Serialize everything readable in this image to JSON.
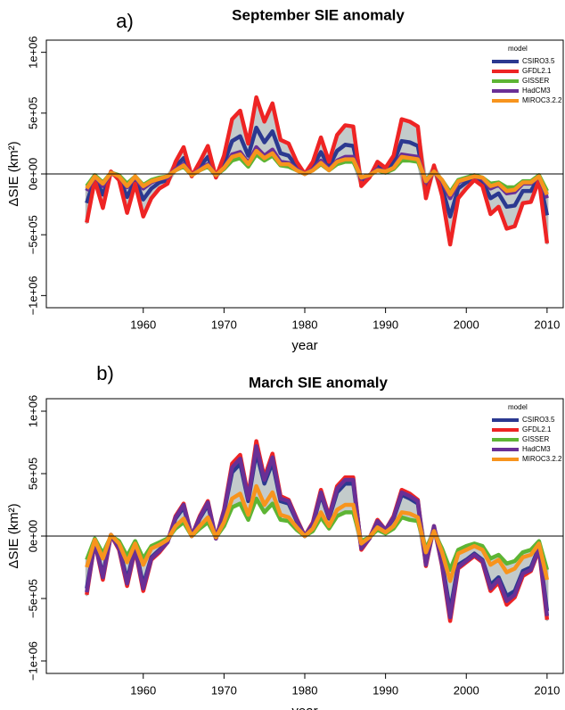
{
  "chart_data": [
    {
      "type": "line",
      "panel_label": "a)",
      "title": "September SIE anomaly",
      "x_label": "year",
      "y_label": "ΔSIE (km²)",
      "legend_title": "model",
      "legend": "top-right",
      "xlim": [
        1948,
        2012
      ],
      "xticks": [
        1960,
        1970,
        1980,
        1990,
        2000,
        2010
      ],
      "ylim": [
        -1100000,
        1100000
      ],
      "yticks": [
        {
          "value": -1000000,
          "label": "−1e+06"
        },
        {
          "value": -500000,
          "label": "−5e+05"
        },
        {
          "value": 0,
          "label": "0e+00"
        },
        {
          "value": 500000,
          "label": "5e+05"
        },
        {
          "value": 1000000,
          "label": "1e+06"
        }
      ],
      "x": [
        1953,
        1954,
        1955,
        1956,
        1957,
        1958,
        1959,
        1960,
        1961,
        1962,
        1963,
        1964,
        1965,
        1966,
        1967,
        1968,
        1969,
        1970,
        1971,
        1972,
        1973,
        1974,
        1975,
        1976,
        1977,
        1978,
        1979,
        1980,
        1981,
        1982,
        1983,
        1984,
        1985,
        1986,
        1987,
        1988,
        1989,
        1990,
        1991,
        1992,
        1993,
        1994,
        1995,
        1996,
        1997,
        1998,
        1999,
        2000,
        2001,
        2002,
        2003,
        2004,
        2005,
        2006,
        2007,
        2008,
        2009,
        2010
      ],
      "series": [
        {
          "name": "CSIRO3.5",
          "color": "#2b3990",
          "values": [
            -240000,
            -30000,
            -170000,
            10000,
            -30000,
            -190000,
            -50000,
            -210000,
            -120000,
            -70000,
            -50000,
            60000,
            130000,
            -10000,
            60000,
            140000,
            -20000,
            90000,
            270000,
            310000,
            150000,
            380000,
            260000,
            350000,
            170000,
            150000,
            60000,
            0,
            60000,
            180000,
            60000,
            190000,
            240000,
            230000,
            -60000,
            -20000,
            60000,
            30000,
            90000,
            270000,
            260000,
            230000,
            -120000,
            40000,
            -110000,
            -350000,
            -120000,
            -70000,
            -30000,
            -60000,
            -200000,
            -160000,
            -270000,
            -260000,
            -140000,
            -140000,
            -30000,
            -340000
          ]
        },
        {
          "name": "GFDL2.1",
          "color": "#ee2424",
          "values": [
            -400000,
            -50000,
            -280000,
            20000,
            -50000,
            -320000,
            -80000,
            -350000,
            -200000,
            -120000,
            -80000,
            100000,
            220000,
            -20000,
            100000,
            230000,
            -30000,
            150000,
            450000,
            520000,
            250000,
            630000,
            430000,
            580000,
            280000,
            250000,
            100000,
            0,
            100000,
            300000,
            100000,
            320000,
            400000,
            390000,
            -100000,
            -30000,
            100000,
            50000,
            150000,
            450000,
            430000,
            390000,
            -200000,
            70000,
            -180000,
            -580000,
            -200000,
            -120000,
            -50000,
            -100000,
            -330000,
            -270000,
            -450000,
            -430000,
            -240000,
            -230000,
            -50000,
            -570000
          ]
        },
        {
          "name": "GISSER",
          "color": "#5db534",
          "values": [
            -100000,
            -10000,
            -70000,
            10000,
            -10000,
            -80000,
            -20000,
            -90000,
            -50000,
            -30000,
            -20000,
            30000,
            60000,
            -10000,
            30000,
            60000,
            -10000,
            40000,
            110000,
            130000,
            60000,
            160000,
            110000,
            150000,
            70000,
            60000,
            30000,
            0,
            30000,
            80000,
            30000,
            80000,
            100000,
            100000,
            -30000,
            -10000,
            30000,
            10000,
            40000,
            110000,
            110000,
            100000,
            -50000,
            20000,
            -50000,
            -150000,
            -50000,
            -30000,
            -10000,
            -30000,
            -80000,
            -70000,
            -110000,
            -110000,
            -60000,
            -60000,
            -10000,
            -140000
          ]
        },
        {
          "name": "HadCM3",
          "color": "#6a2f96",
          "values": [
            -140000,
            -20000,
            -100000,
            10000,
            -20000,
            -110000,
            -30000,
            -120000,
            -70000,
            -40000,
            -30000,
            40000,
            80000,
            -10000,
            40000,
            80000,
            -10000,
            50000,
            160000,
            180000,
            90000,
            220000,
            150000,
            200000,
            100000,
            90000,
            40000,
            0,
            40000,
            110000,
            40000,
            110000,
            140000,
            140000,
            -40000,
            -10000,
            40000,
            20000,
            50000,
            160000,
            150000,
            140000,
            -70000,
            20000,
            -60000,
            -200000,
            -70000,
            -40000,
            -20000,
            -40000,
            -120000,
            -90000,
            -160000,
            -150000,
            -80000,
            -80000,
            -20000,
            -200000
          ]
        },
        {
          "name": "MIROC3.2.2",
          "color": "#f7941d",
          "values": [
            -120000,
            -20000,
            -80000,
            10000,
            -20000,
            -100000,
            -20000,
            -100000,
            -60000,
            -40000,
            -20000,
            30000,
            70000,
            -10000,
            30000,
            70000,
            -10000,
            50000,
            140000,
            160000,
            80000,
            190000,
            130000,
            170000,
            80000,
            80000,
            30000,
            0,
            30000,
            90000,
            30000,
            100000,
            120000,
            120000,
            -30000,
            -10000,
            30000,
            20000,
            50000,
            140000,
            130000,
            120000,
            -60000,
            20000,
            -50000,
            -170000,
            -60000,
            -40000,
            -20000,
            -30000,
            -100000,
            -80000,
            -140000,
            -130000,
            -70000,
            -70000,
            -20000,
            -170000
          ]
        }
      ]
    },
    {
      "type": "line",
      "panel_label": "b)",
      "title": "March SIE anomaly",
      "x_label": "year",
      "y_label": "ΔSIE (km²)",
      "legend_title": "model",
      "legend": "top-right",
      "xlim": [
        1948,
        2012
      ],
      "xticks": [
        1960,
        1970,
        1980,
        1990,
        2000,
        2010
      ],
      "ylim": [
        -1100000,
        1100000
      ],
      "yticks": [
        {
          "value": -1000000,
          "label": "−1e+06"
        },
        {
          "value": -500000,
          "label": "−5e+05"
        },
        {
          "value": 0,
          "label": "0e+00"
        },
        {
          "value": 500000,
          "label": "5e+05"
        },
        {
          "value": 1000000,
          "label": "1e+06"
        }
      ],
      "x": [
        1953,
        1954,
        1955,
        1956,
        1957,
        1958,
        1959,
        1960,
        1961,
        1962,
        1963,
        1964,
        1965,
        1966,
        1967,
        1968,
        1969,
        1970,
        1971,
        1972,
        1973,
        1974,
        1975,
        1976,
        1977,
        1978,
        1979,
        1980,
        1981,
        1982,
        1983,
        1984,
        1985,
        1986,
        1987,
        1988,
        1989,
        1990,
        1991,
        1992,
        1993,
        1994,
        1995,
        1996,
        1997,
        1998,
        1999,
        2000,
        2001,
        2002,
        2003,
        2004,
        2005,
        2006,
        2007,
        2008,
        2009,
        2010
      ],
      "series": [
        {
          "name": "CSIRO3.5",
          "color": "#2b3990",
          "values": [
            -420000,
            -50000,
            -310000,
            10000,
            -90000,
            -350000,
            -90000,
            -390000,
            -170000,
            -110000,
            -50000,
            140000,
            230000,
            0,
            140000,
            250000,
            -20000,
            190000,
            510000,
            580000,
            280000,
            670000,
            420000,
            590000,
            280000,
            260000,
            120000,
            0,
            90000,
            330000,
            140000,
            350000,
            420000,
            420000,
            -90000,
            -20000,
            110000,
            50000,
            140000,
            330000,
            300000,
            260000,
            -210000,
            70000,
            -210000,
            -600000,
            -230000,
            -190000,
            -140000,
            -190000,
            -390000,
            -330000,
            -480000,
            -440000,
            -280000,
            -250000,
            -90000,
            -600000
          ]
        },
        {
          "name": "GFDL2.1",
          "color": "#ee2424",
          "values": [
            -470000,
            -50000,
            -350000,
            10000,
            -110000,
            -400000,
            -110000,
            -440000,
            -190000,
            -130000,
            -50000,
            160000,
            260000,
            0,
            160000,
            280000,
            -20000,
            210000,
            580000,
            650000,
            320000,
            760000,
            470000,
            660000,
            320000,
            290000,
            140000,
            0,
            110000,
            370000,
            160000,
            400000,
            470000,
            470000,
            -110000,
            -20000,
            130000,
            50000,
            160000,
            370000,
            340000,
            290000,
            -240000,
            80000,
            -240000,
            -680000,
            -260000,
            -210000,
            -160000,
            -210000,
            -440000,
            -370000,
            -550000,
            -490000,
            -320000,
            -280000,
            -110000,
            -670000
          ]
        },
        {
          "name": "GISSER",
          "color": "#5db534",
          "values": [
            -190000,
            -20000,
            -140000,
            0,
            -40000,
            -160000,
            -40000,
            -180000,
            -80000,
            -50000,
            -20000,
            60000,
            110000,
            0,
            60000,
            110000,
            -10000,
            80000,
            230000,
            260000,
            130000,
            300000,
            190000,
            260000,
            130000,
            120000,
            50000,
            0,
            40000,
            150000,
            60000,
            160000,
            190000,
            190000,
            -40000,
            -10000,
            50000,
            20000,
            60000,
            150000,
            130000,
            120000,
            -100000,
            30000,
            -100000,
            -270000,
            -110000,
            -80000,
            -60000,
            -80000,
            -180000,
            -150000,
            -220000,
            -200000,
            -130000,
            -110000,
            -40000,
            -270000
          ]
        },
        {
          "name": "HadCM3",
          "color": "#6a2f96",
          "values": [
            -450000,
            -50000,
            -330000,
            10000,
            -100000,
            -380000,
            -100000,
            -420000,
            -180000,
            -120000,
            -50000,
            150000,
            250000,
            0,
            150000,
            270000,
            -20000,
            200000,
            550000,
            620000,
            300000,
            720000,
            450000,
            630000,
            300000,
            280000,
            130000,
            0,
            100000,
            350000,
            150000,
            380000,
            450000,
            450000,
            -100000,
            -20000,
            120000,
            50000,
            150000,
            350000,
            320000,
            280000,
            -230000,
            80000,
            -230000,
            -650000,
            -250000,
            -200000,
            -150000,
            -200000,
            -420000,
            -350000,
            -520000,
            -470000,
            -300000,
            -270000,
            -100000,
            -640000
          ]
        },
        {
          "name": "MIROC3.2.2",
          "color": "#f7941d",
          "values": [
            -250000,
            -30000,
            -180000,
            10000,
            -60000,
            -210000,
            -60000,
            -230000,
            -100000,
            -70000,
            -30000,
            80000,
            140000,
            0,
            80000,
            150000,
            -10000,
            110000,
            300000,
            340000,
            170000,
            400000,
            250000,
            350000,
            170000,
            150000,
            70000,
            0,
            60000,
            190000,
            80000,
            210000,
            250000,
            250000,
            -60000,
            -10000,
            70000,
            30000,
            80000,
            190000,
            180000,
            150000,
            -130000,
            40000,
            -130000,
            -360000,
            -140000,
            -110000,
            -80000,
            -110000,
            -230000,
            -190000,
            -290000,
            -260000,
            -170000,
            -150000,
            -60000,
            -350000
          ]
        }
      ]
    }
  ]
}
